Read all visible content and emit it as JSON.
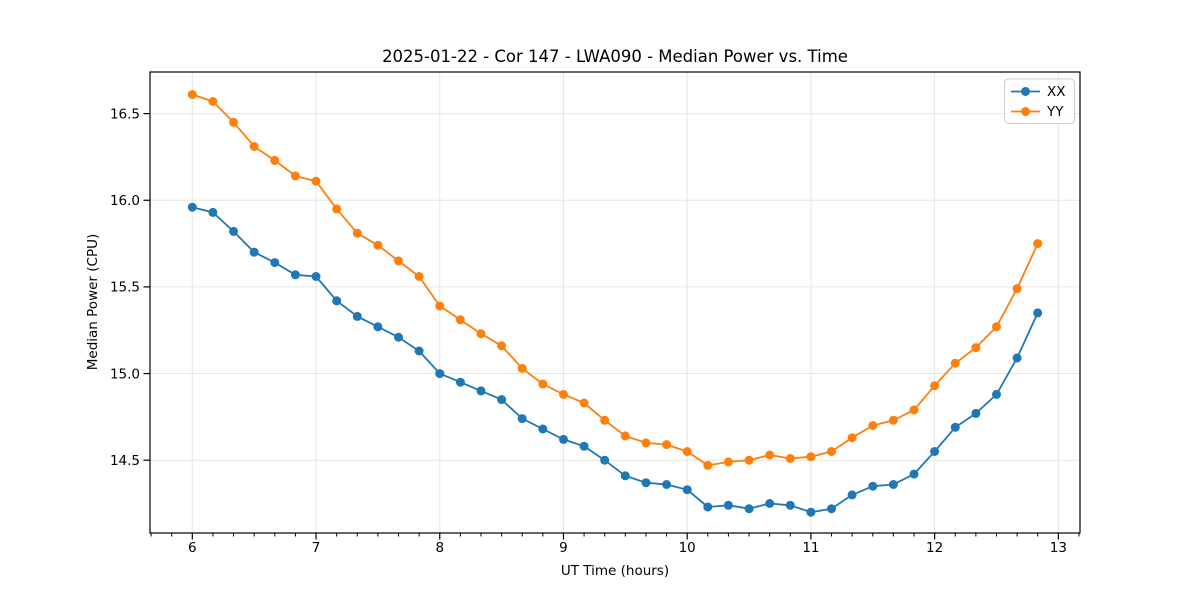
{
  "figure": {
    "background": "#ffffff",
    "spine_color": "#000000",
    "grid_color": "#e5e5e5"
  },
  "chart_data": {
    "type": "line",
    "title": "2025-01-22 - Cor 147 - LWA090 - Median Power vs. Time",
    "xlabel": "UT Time (hours)",
    "ylabel": "Median Power (CPU)",
    "grid": true,
    "legend_position": "upper right",
    "marker": "circle",
    "xlim": [
      5.658,
      13.175
    ],
    "ylim": [
      14.08,
      16.74
    ],
    "x_ticks": [
      6,
      7,
      8,
      9,
      10,
      11,
      12,
      13
    ],
    "y_ticks": [
      14.5,
      15.0,
      15.5,
      16.0,
      16.5
    ],
    "x_minor_divisions": 6,
    "x": [
      6.0,
      6.1667,
      6.3333,
      6.5,
      6.6667,
      6.8333,
      7.0,
      7.1667,
      7.3333,
      7.5,
      7.6667,
      7.8333,
      8.0,
      8.1667,
      8.3333,
      8.5,
      8.6667,
      8.8333,
      9.0,
      9.1667,
      9.3333,
      9.5,
      9.6667,
      9.8333,
      10.0,
      10.1667,
      10.3333,
      10.5,
      10.6667,
      10.8333,
      11.0,
      11.1667,
      11.3333,
      11.5,
      11.6667,
      11.8333,
      12.0,
      12.1667,
      12.3333,
      12.5,
      12.6667,
      12.8333
    ],
    "series": [
      {
        "name": "XX",
        "color": "#1f77b4",
        "values": [
          15.96,
          15.93,
          15.82,
          15.7,
          15.64,
          15.57,
          15.56,
          15.42,
          15.33,
          15.27,
          15.21,
          15.13,
          15.0,
          14.95,
          14.9,
          14.85,
          14.74,
          14.68,
          14.62,
          14.58,
          14.5,
          14.41,
          14.37,
          14.36,
          14.33,
          14.23,
          14.24,
          14.22,
          14.25,
          14.24,
          14.2,
          14.22,
          14.3,
          14.35,
          14.36,
          14.42,
          14.55,
          14.69,
          14.77,
          14.88,
          15.09,
          15.35
        ]
      },
      {
        "name": "YY",
        "color": "#ff7f0e",
        "values": [
          16.61,
          16.57,
          16.45,
          16.31,
          16.23,
          16.14,
          16.11,
          15.95,
          15.81,
          15.74,
          15.65,
          15.56,
          15.39,
          15.31,
          15.23,
          15.16,
          15.03,
          14.94,
          14.88,
          14.83,
          14.73,
          14.64,
          14.6,
          14.59,
          14.55,
          14.47,
          14.49,
          14.5,
          14.53,
          14.51,
          14.52,
          14.55,
          14.63,
          14.7,
          14.73,
          14.79,
          14.93,
          15.06,
          15.15,
          15.27,
          15.49,
          15.75
        ]
      }
    ]
  }
}
